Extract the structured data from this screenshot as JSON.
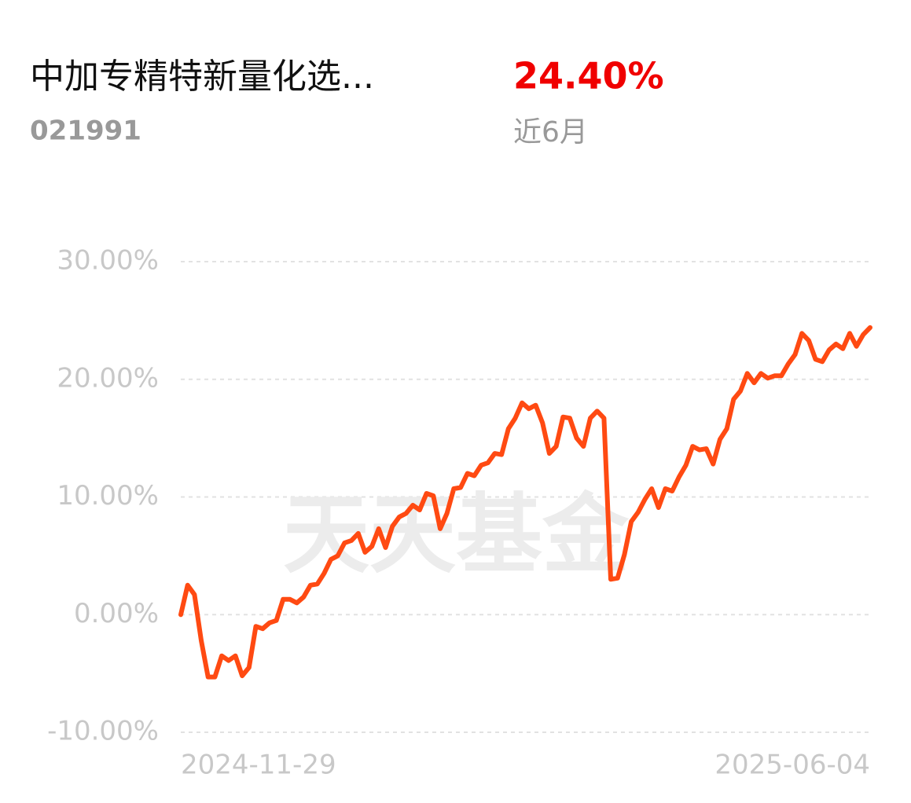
{
  "header": {
    "name": "中加专精特新量化选...",
    "code": "021991",
    "return": "24.40%",
    "period": "近6月",
    "watermark": "天天基金"
  },
  "chart_data": {
    "type": "line",
    "categories": [
      "2024-11-29",
      null,
      null,
      null,
      null,
      null,
      null,
      null,
      null,
      null,
      null,
      null,
      null,
      null,
      null,
      null,
      null,
      null,
      null,
      null,
      null,
      null,
      null,
      null,
      null,
      null,
      null,
      null,
      null,
      null,
      null,
      null,
      null,
      null,
      null,
      null,
      null,
      null,
      null,
      null,
      null,
      null,
      null,
      null,
      null,
      null,
      null,
      null,
      null,
      null,
      null,
      null,
      null,
      null,
      null,
      null,
      null,
      null,
      null,
      null,
      null,
      null,
      null,
      null,
      null,
      null,
      null,
      null,
      null,
      null,
      null,
      null,
      null,
      null,
      null,
      null,
      null,
      null,
      null,
      null,
      null,
      null,
      null,
      null,
      null,
      null,
      null,
      null,
      null,
      null,
      null,
      null,
      null,
      null,
      null,
      null,
      null,
      null,
      null,
      null,
      null,
      "2025-06-04"
    ],
    "values": [
      0,
      2.5,
      1.7,
      -2.2,
      -5.3,
      -5.3,
      -3.5,
      -3.9,
      -3.5,
      -5.2,
      -4.5,
      -1.0,
      -1.2,
      -0.7,
      -0.5,
      1.3,
      1.3,
      1.0,
      1.5,
      2.5,
      2.6,
      3.5,
      4.7,
      5.0,
      6.1,
      6.3,
      6.9,
      5.3,
      5.8,
      7.3,
      5.7,
      7.5,
      8.3,
      8.6,
      9.3,
      8.9,
      10.3,
      10.1,
      7.3,
      8.6,
      10.7,
      10.8,
      12.0,
      11.8,
      12.7,
      12.9,
      13.7,
      13.6,
      15.8,
      16.7,
      18.0,
      17.5,
      17.8,
      16.3,
      13.7,
      14.3,
      16.8,
      16.7,
      15.0,
      14.3,
      16.7,
      17.3,
      16.7,
      3.0,
      3.1,
      5.1,
      7.9,
      8.7,
      9.8,
      10.7,
      9.1,
      10.7,
      10.5,
      11.7,
      12.7,
      14.3,
      14.0,
      14.1,
      12.8,
      14.9,
      15.8,
      18.3,
      19.0,
      20.5,
      19.7,
      20.5,
      20.1,
      20.3,
      20.3,
      21.3,
      22.1,
      23.9,
      23.3,
      21.7,
      21.5,
      22.5,
      23.0,
      22.6,
      23.9,
      22.8,
      23.8,
      24.4
    ],
    "color": "#ff4a12",
    "ylim": [
      -10,
      30
    ],
    "yticks": [
      {
        "value": -10,
        "label": "-10.00%"
      },
      {
        "value": 0,
        "label": "0.00%"
      },
      {
        "value": 10,
        "label": "10.00%"
      },
      {
        "value": 20,
        "label": "20.00%"
      },
      {
        "value": 30,
        "label": "30.00%"
      }
    ],
    "grid": true
  }
}
